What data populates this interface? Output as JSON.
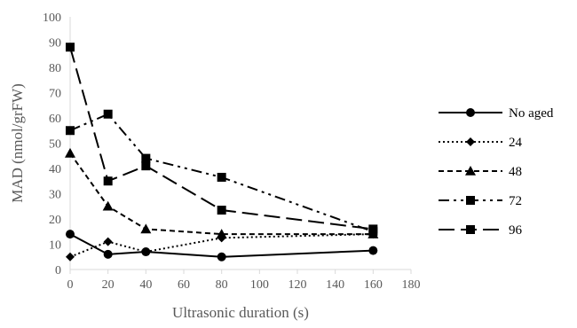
{
  "chart_data": {
    "type": "line",
    "title": "",
    "xlabel": "Ultrasonic duration (s)",
    "ylabel": "MAD (nmol/grFW)",
    "xlim": [
      0,
      180
    ],
    "ylim": [
      0,
      100
    ],
    "x_ticks": [
      0,
      20,
      40,
      60,
      80,
      100,
      120,
      140,
      160,
      180
    ],
    "y_ticks": [
      0,
      10,
      20,
      30,
      40,
      50,
      60,
      70,
      80,
      90,
      100
    ],
    "x": [
      0,
      20,
      40,
      80,
      160
    ],
    "grid": false,
    "legend_position": "right",
    "series": [
      {
        "name": "No aged",
        "values": [
          14,
          6,
          7,
          5,
          7.5
        ],
        "marker": "circle",
        "dash": "solid"
      },
      {
        "name": "24",
        "values": [
          5,
          11,
          7,
          12.5,
          14
        ],
        "marker": "diamond",
        "dash": "dotted"
      },
      {
        "name": "48",
        "values": [
          46,
          25,
          16,
          14,
          14
        ],
        "marker": "triangle",
        "dash": "dashed"
      },
      {
        "name": "72",
        "values": [
          55,
          61.5,
          44,
          36.5,
          15
        ],
        "marker": "square",
        "dash": "dash-dot"
      },
      {
        "name": "96",
        "values": [
          88,
          35,
          41,
          23.5,
          16
        ],
        "marker": "square",
        "dash": "long-dash"
      }
    ]
  }
}
